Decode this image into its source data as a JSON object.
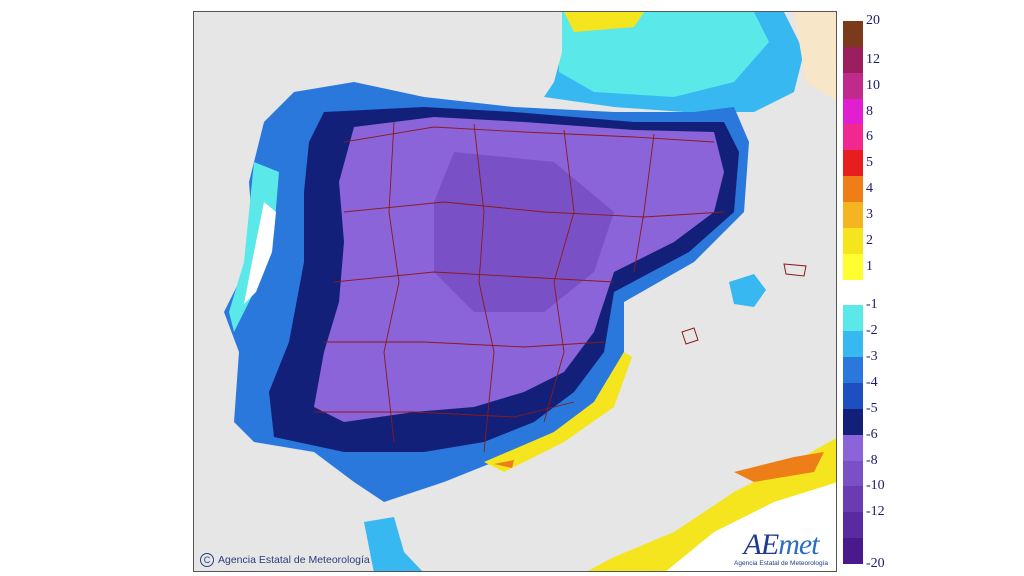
{
  "map": {
    "copyright": "Agencia Estatal de Meteorología",
    "copyright_icon": "copyright-icon",
    "logo": {
      "wordmark_a": "AE",
      "wordmark_b": "met",
      "subtitle": "Agencia Estatal de Meteorología"
    }
  },
  "legend": {
    "colors": [
      "#7b3b1a",
      "#9b1f5e",
      "#c02a8a",
      "#e020d0",
      "#f02890",
      "#e81e1e",
      "#ee7e18",
      "#f5b422",
      "#f5e51e",
      "#ffff30",
      "#ffffff",
      "#5ae8e8",
      "#38b8f0",
      "#2a78dc",
      "#1e4fbf",
      "#12207a",
      "#8a64d8",
      "#7a50c6",
      "#6a3cb2",
      "#5a2aa0",
      "#4a1a8c"
    ],
    "labels": [
      "20",
      "12",
      "10",
      "8",
      "6",
      "5",
      "4",
      "3",
      "2",
      "1",
      "-1",
      "-2",
      "-3",
      "-4",
      "-5",
      "-6",
      "-8",
      "-10",
      "-12",
      "-20"
    ]
  }
}
